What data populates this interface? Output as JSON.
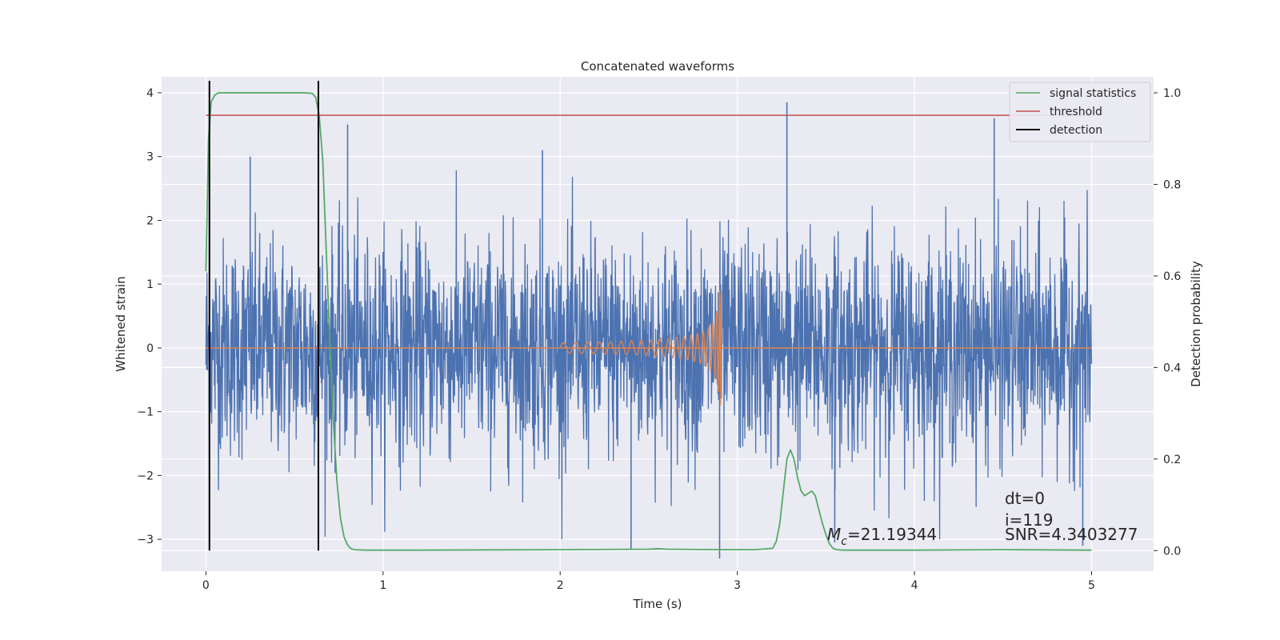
{
  "chart_data": {
    "type": "line",
    "title": "Concatenated waveforms",
    "xlabel": "Time (s)",
    "ylabel": "Whitened strain",
    "ylabel_right": "Detection probability",
    "xlim": [
      -0.25,
      5.35
    ],
    "ylim": [
      -3.5,
      4.25
    ],
    "ylim_right": [
      -0.045,
      1.035
    ],
    "xticks": [
      0,
      1,
      2,
      3,
      4,
      5
    ],
    "xtick_labels": [
      "0",
      "1",
      "2",
      "3",
      "4",
      "5"
    ],
    "yticks": [
      -3,
      -2,
      -1,
      0,
      1,
      2,
      3,
      4
    ],
    "ytick_labels": [
      "−3",
      "−2",
      "−1",
      "0",
      "1",
      "2",
      "3",
      "4"
    ],
    "yticks_right": [
      0.0,
      0.2,
      0.4,
      0.6,
      0.8,
      1.0
    ],
    "ytick_labels_right": [
      "0.0",
      "0.2",
      "0.4",
      "0.6",
      "0.8",
      "1.0"
    ],
    "grid": true,
    "legend_position": "top-right",
    "colors": {
      "strain": "#4c72b0",
      "template": "#dd8452",
      "signal_statistics": "#55a868",
      "threshold": "#c44e52",
      "detection": "#000000",
      "axes_bg": "#eaeaf2",
      "grid": "#ffffff"
    },
    "series": [
      {
        "key": "strain",
        "axis": "left",
        "noise": {
          "x_start": 0.0,
          "x_end": 5.0,
          "std": 0.85
        },
        "spikes": [
          [
            0.25,
            3.0
          ],
          [
            0.8,
            3.5
          ],
          [
            1.9,
            3.1
          ],
          [
            3.28,
            3.85
          ],
          [
            4.45,
            3.6
          ],
          [
            2.9,
            -3.3
          ],
          [
            2.4,
            -3.15
          ],
          [
            4.95,
            -3.1
          ],
          [
            3.55,
            -3.05
          ]
        ]
      },
      {
        "key": "template",
        "axis": "left",
        "flat": [
          0.0,
          5.0
        ],
        "chirp": {
          "x_start": 2.0,
          "x_end": 2.91,
          "peak_amplitude": 0.9
        }
      },
      {
        "key": "signal_statistics",
        "name": "signal statistics",
        "axis": "right",
        "x": [
          0.0,
          0.015,
          0.03,
          0.05,
          0.07,
          0.1,
          0.2,
          0.4,
          0.55,
          0.6,
          0.62,
          0.64,
          0.66,
          0.68,
          0.7,
          0.72,
          0.74,
          0.76,
          0.78,
          0.8,
          0.82,
          0.84,
          0.9,
          1.2,
          2.0,
          2.5,
          2.55,
          2.6,
          2.9,
          3.1,
          3.2,
          3.22,
          3.24,
          3.26,
          3.28,
          3.3,
          3.32,
          3.34,
          3.36,
          3.38,
          3.4,
          3.42,
          3.44,
          3.46,
          3.48,
          3.5,
          3.52,
          3.54,
          3.56,
          3.6,
          4.0,
          4.5,
          5.0
        ],
        "y": [
          0.61,
          0.9,
          0.98,
          0.995,
          1.0,
          1.0,
          1.0,
          1.0,
          1.0,
          0.999,
          0.99,
          0.95,
          0.85,
          0.65,
          0.45,
          0.28,
          0.15,
          0.07,
          0.03,
          0.012,
          0.004,
          0.002,
          0.001,
          0.001,
          0.002,
          0.003,
          0.004,
          0.003,
          0.002,
          0.002,
          0.005,
          0.02,
          0.06,
          0.13,
          0.2,
          0.22,
          0.2,
          0.16,
          0.13,
          0.12,
          0.125,
          0.13,
          0.12,
          0.09,
          0.06,
          0.035,
          0.015,
          0.005,
          0.002,
          0.001,
          0.001,
          0.002,
          0.001
        ]
      },
      {
        "key": "threshold",
        "name": "threshold",
        "axis": "right",
        "x": [
          0.0,
          5.0
        ],
        "y": [
          0.951,
          0.951
        ]
      },
      {
        "key": "detection",
        "name": "detection",
        "axis": "right",
        "vlines_x": [
          0.02,
          0.635
        ],
        "ymin": 0.0,
        "ymax": 1.0
      }
    ],
    "annotations": {
      "mc_symbol": "M",
      "mc_subscript": "c",
      "mc_value": "=21.19344",
      "dt": "dt=0",
      "i": "i=119",
      "snr": "SNR=4.3403277"
    }
  }
}
